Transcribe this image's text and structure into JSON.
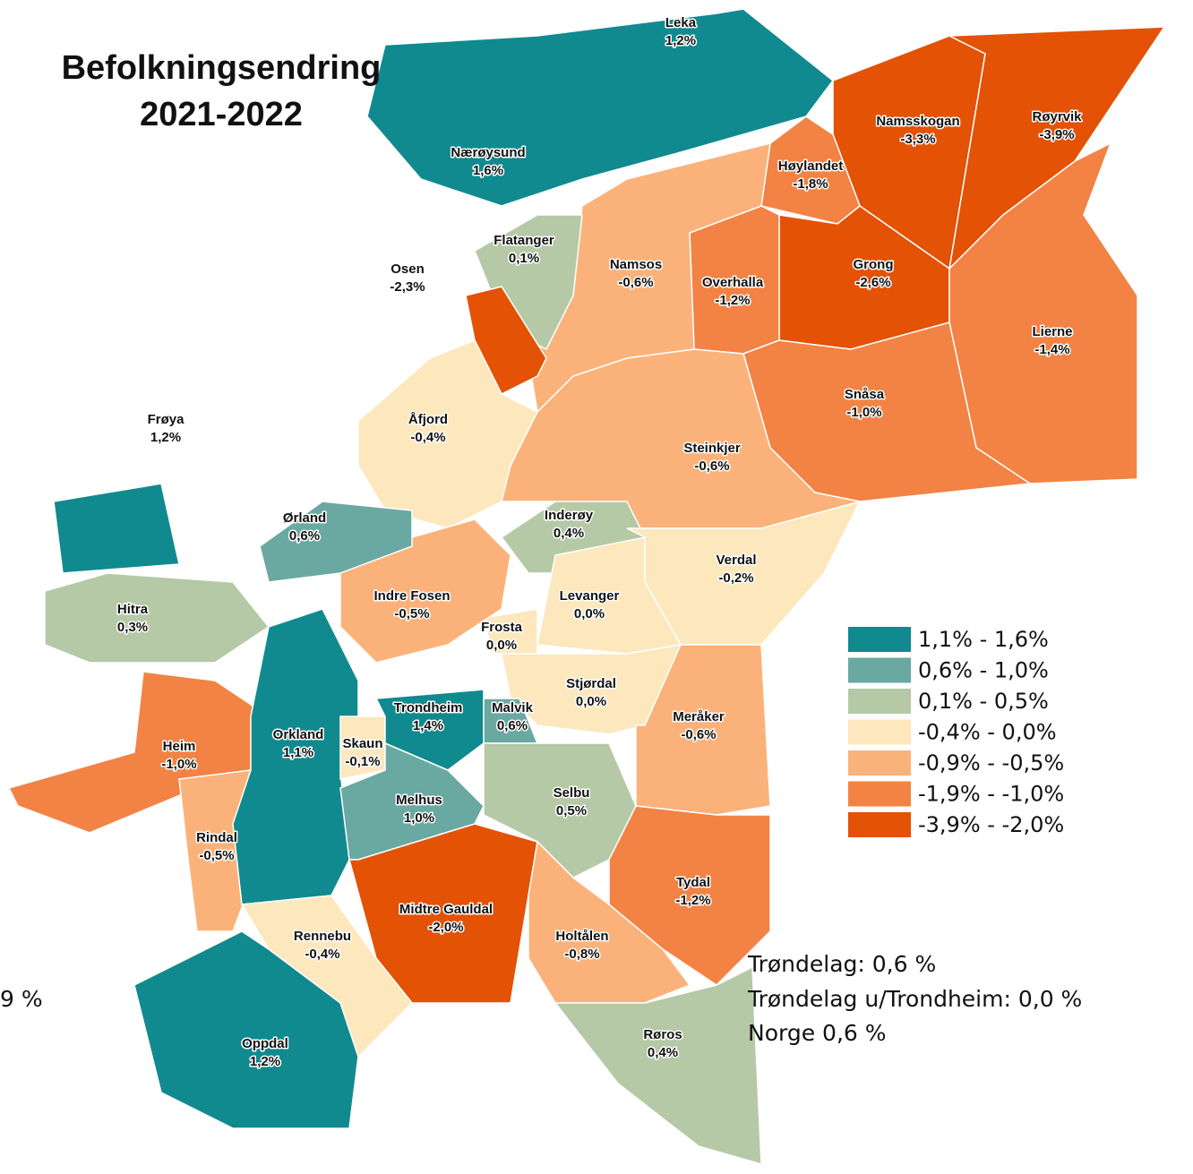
{
  "title": [
    "Befolkningsendring",
    "2021-2022"
  ],
  "municipalities": [
    {
      "name": "Leka",
      "value": "1,2%",
      "color": "#108a8f"
    },
    {
      "name": "Nærøysund",
      "value": "1,6%",
      "color": "#108a8f"
    },
    {
      "name": "Namsskogan",
      "value": "-3,3%",
      "color": "#e35205"
    },
    {
      "name": "Røyrvik",
      "value": "-3,9%",
      "color": "#e35205"
    },
    {
      "name": "Høylandet",
      "value": "-1,8%",
      "color": "#f28344"
    },
    {
      "name": "Grong",
      "value": "-2,6%",
      "color": "#e35205"
    },
    {
      "name": "Overhalla",
      "value": "-1,2%",
      "color": "#f28344"
    },
    {
      "name": "Lierne",
      "value": "-1,4%",
      "color": "#f28344"
    },
    {
      "name": "Snåsa",
      "value": "-1,0%",
      "color": "#f28344"
    },
    {
      "name": "Namsos",
      "value": "-0,6%",
      "color": "#fbb27a"
    },
    {
      "name": "Flatanger",
      "value": "0,1%",
      "color": "#b5c9a7"
    },
    {
      "name": "Osen",
      "value": "-2,3%",
      "color": "#e35205"
    },
    {
      "name": "Åfjord",
      "value": "-0,4%",
      "color": "#fde7bd"
    },
    {
      "name": "Steinkjer",
      "value": "-0,6%",
      "color": "#fbb27a"
    },
    {
      "name": "Inderøy",
      "value": "0,4%",
      "color": "#b5c9a7"
    },
    {
      "name": "Verdal",
      "value": "-0,2%",
      "color": "#fde7bd"
    },
    {
      "name": "Levanger",
      "value": "0,0%",
      "color": "#fde7bd"
    },
    {
      "name": "Frosta",
      "value": "0,0%",
      "color": "#fde7bd"
    },
    {
      "name": "Stjørdal",
      "value": "0,0%",
      "color": "#fde7bd"
    },
    {
      "name": "Meråker",
      "value": "-0,6%",
      "color": "#fbb27a"
    },
    {
      "name": "Indre Fosen",
      "value": "-0,5%",
      "color": "#fbb27a"
    },
    {
      "name": "Ørland",
      "value": "0,6%",
      "color": "#6aa9a1"
    },
    {
      "name": "Frøya",
      "value": "1,2%",
      "color": "#108a8f"
    },
    {
      "name": "Hitra",
      "value": "0,3%",
      "color": "#b5c9a7"
    },
    {
      "name": "Heim",
      "value": "-1,0%",
      "color": "#f28344"
    },
    {
      "name": "Rindal",
      "value": "-0,5%",
      "color": "#fbb27a"
    },
    {
      "name": "Orkland",
      "value": "1,1%",
      "color": "#108a8f"
    },
    {
      "name": "Skaun",
      "value": "-0,1%",
      "color": "#fde7bd"
    },
    {
      "name": "Trondheim",
      "value": "1,4%",
      "color": "#108a8f"
    },
    {
      "name": "Malvik",
      "value": "0,6%",
      "color": "#6aa9a1"
    },
    {
      "name": "Melhus",
      "value": "1,0%",
      "color": "#6aa9a1"
    },
    {
      "name": "Selbu",
      "value": "0,5%",
      "color": "#b5c9a7"
    },
    {
      "name": "Midtre Gauldal",
      "value": "-2,0%",
      "color": "#e35205"
    },
    {
      "name": "Tydal",
      "value": "-1,2%",
      "color": "#f28344"
    },
    {
      "name": "Holtålen",
      "value": "-0,8%",
      "color": "#fbb27a"
    },
    {
      "name": "Røros",
      "value": "0,4%",
      "color": "#b5c9a7"
    },
    {
      "name": "Rennebu",
      "value": "-0,4%",
      "color": "#fde7bd"
    },
    {
      "name": "Oppdal",
      "value": "1,2%",
      "color": "#108a8f"
    }
  ],
  "legend": [
    {
      "label": "1,1% - 1,6%",
      "color": "#108a8f"
    },
    {
      "label": "0,6% - 1,0%",
      "color": "#6aa9a1"
    },
    {
      "label": "0,1% - 0,5%",
      "color": "#b5c9a7"
    },
    {
      "label": "-0,4% - 0,0%",
      "color": "#fde7bd"
    },
    {
      "label": "-0,9% - -0,5%",
      "color": "#fbb27a"
    },
    {
      "label": "-1,9% - -1,0%",
      "color": "#f28344"
    },
    {
      "label": "-3,9% - -2,0%",
      "color": "#e35205"
    }
  ],
  "notes": [
    "Trøndelag: 0,6 %",
    "Trøndelag u/Trondheim: 0,0 %",
    "Norge 0,6 %"
  ],
  "cut_text": "9 %"
}
